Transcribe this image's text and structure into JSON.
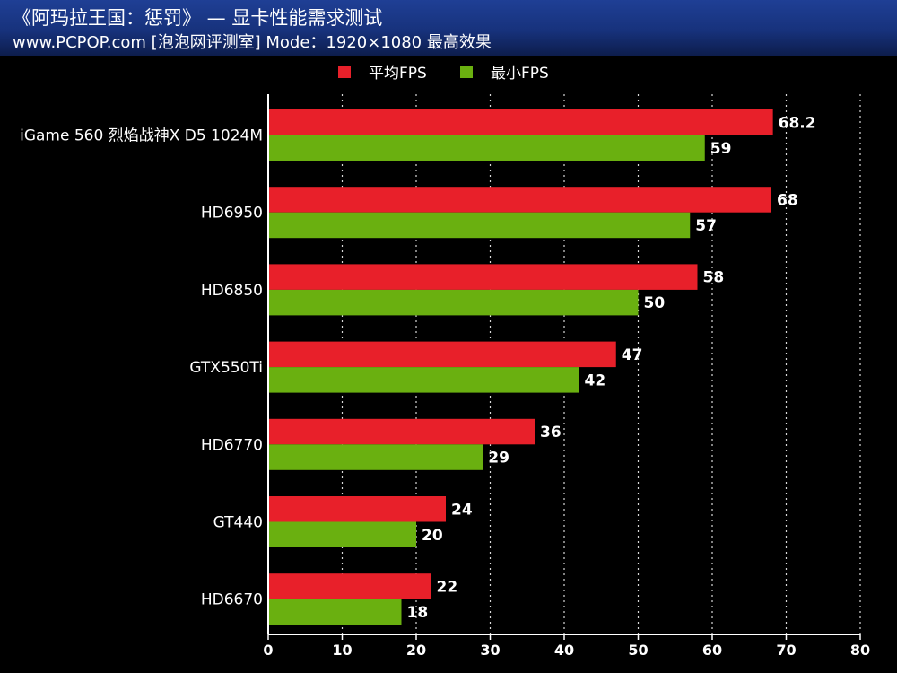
{
  "header": {
    "title": "《阿玛拉王国：惩罚》 — 显卡性能需求测试",
    "subtitle": "www.PCPOP.com [泡泡网评测室] Mode：1920×1080 最高效果"
  },
  "chart_data": {
    "type": "bar",
    "orientation": "horizontal",
    "categories": [
      "iGame 560 烈焰战神X D5 1024M",
      "HD6950",
      "HD6850",
      "GTX550Ti",
      "HD6770",
      "GT440",
      "HD6670"
    ],
    "series": [
      {
        "name": "平均FPS",
        "color": "#e8202a",
        "values": [
          68.2,
          68,
          58,
          47,
          36,
          24,
          22
        ]
      },
      {
        "name": "最小FPS",
        "color": "#6ab010",
        "values": [
          59,
          57,
          50,
          42,
          29,
          20,
          18
        ]
      }
    ],
    "value_labels": [
      [
        "68.2",
        "68",
        "58",
        "47",
        "36",
        "24",
        "22"
      ],
      [
        "59",
        "57",
        "50",
        "42",
        "29",
        "20",
        "18"
      ]
    ],
    "xlim": [
      0,
      80
    ],
    "ticks": [
      0,
      10,
      20,
      30,
      40,
      50,
      60,
      70,
      80
    ],
    "grid": true,
    "legend_position": "top-center"
  }
}
